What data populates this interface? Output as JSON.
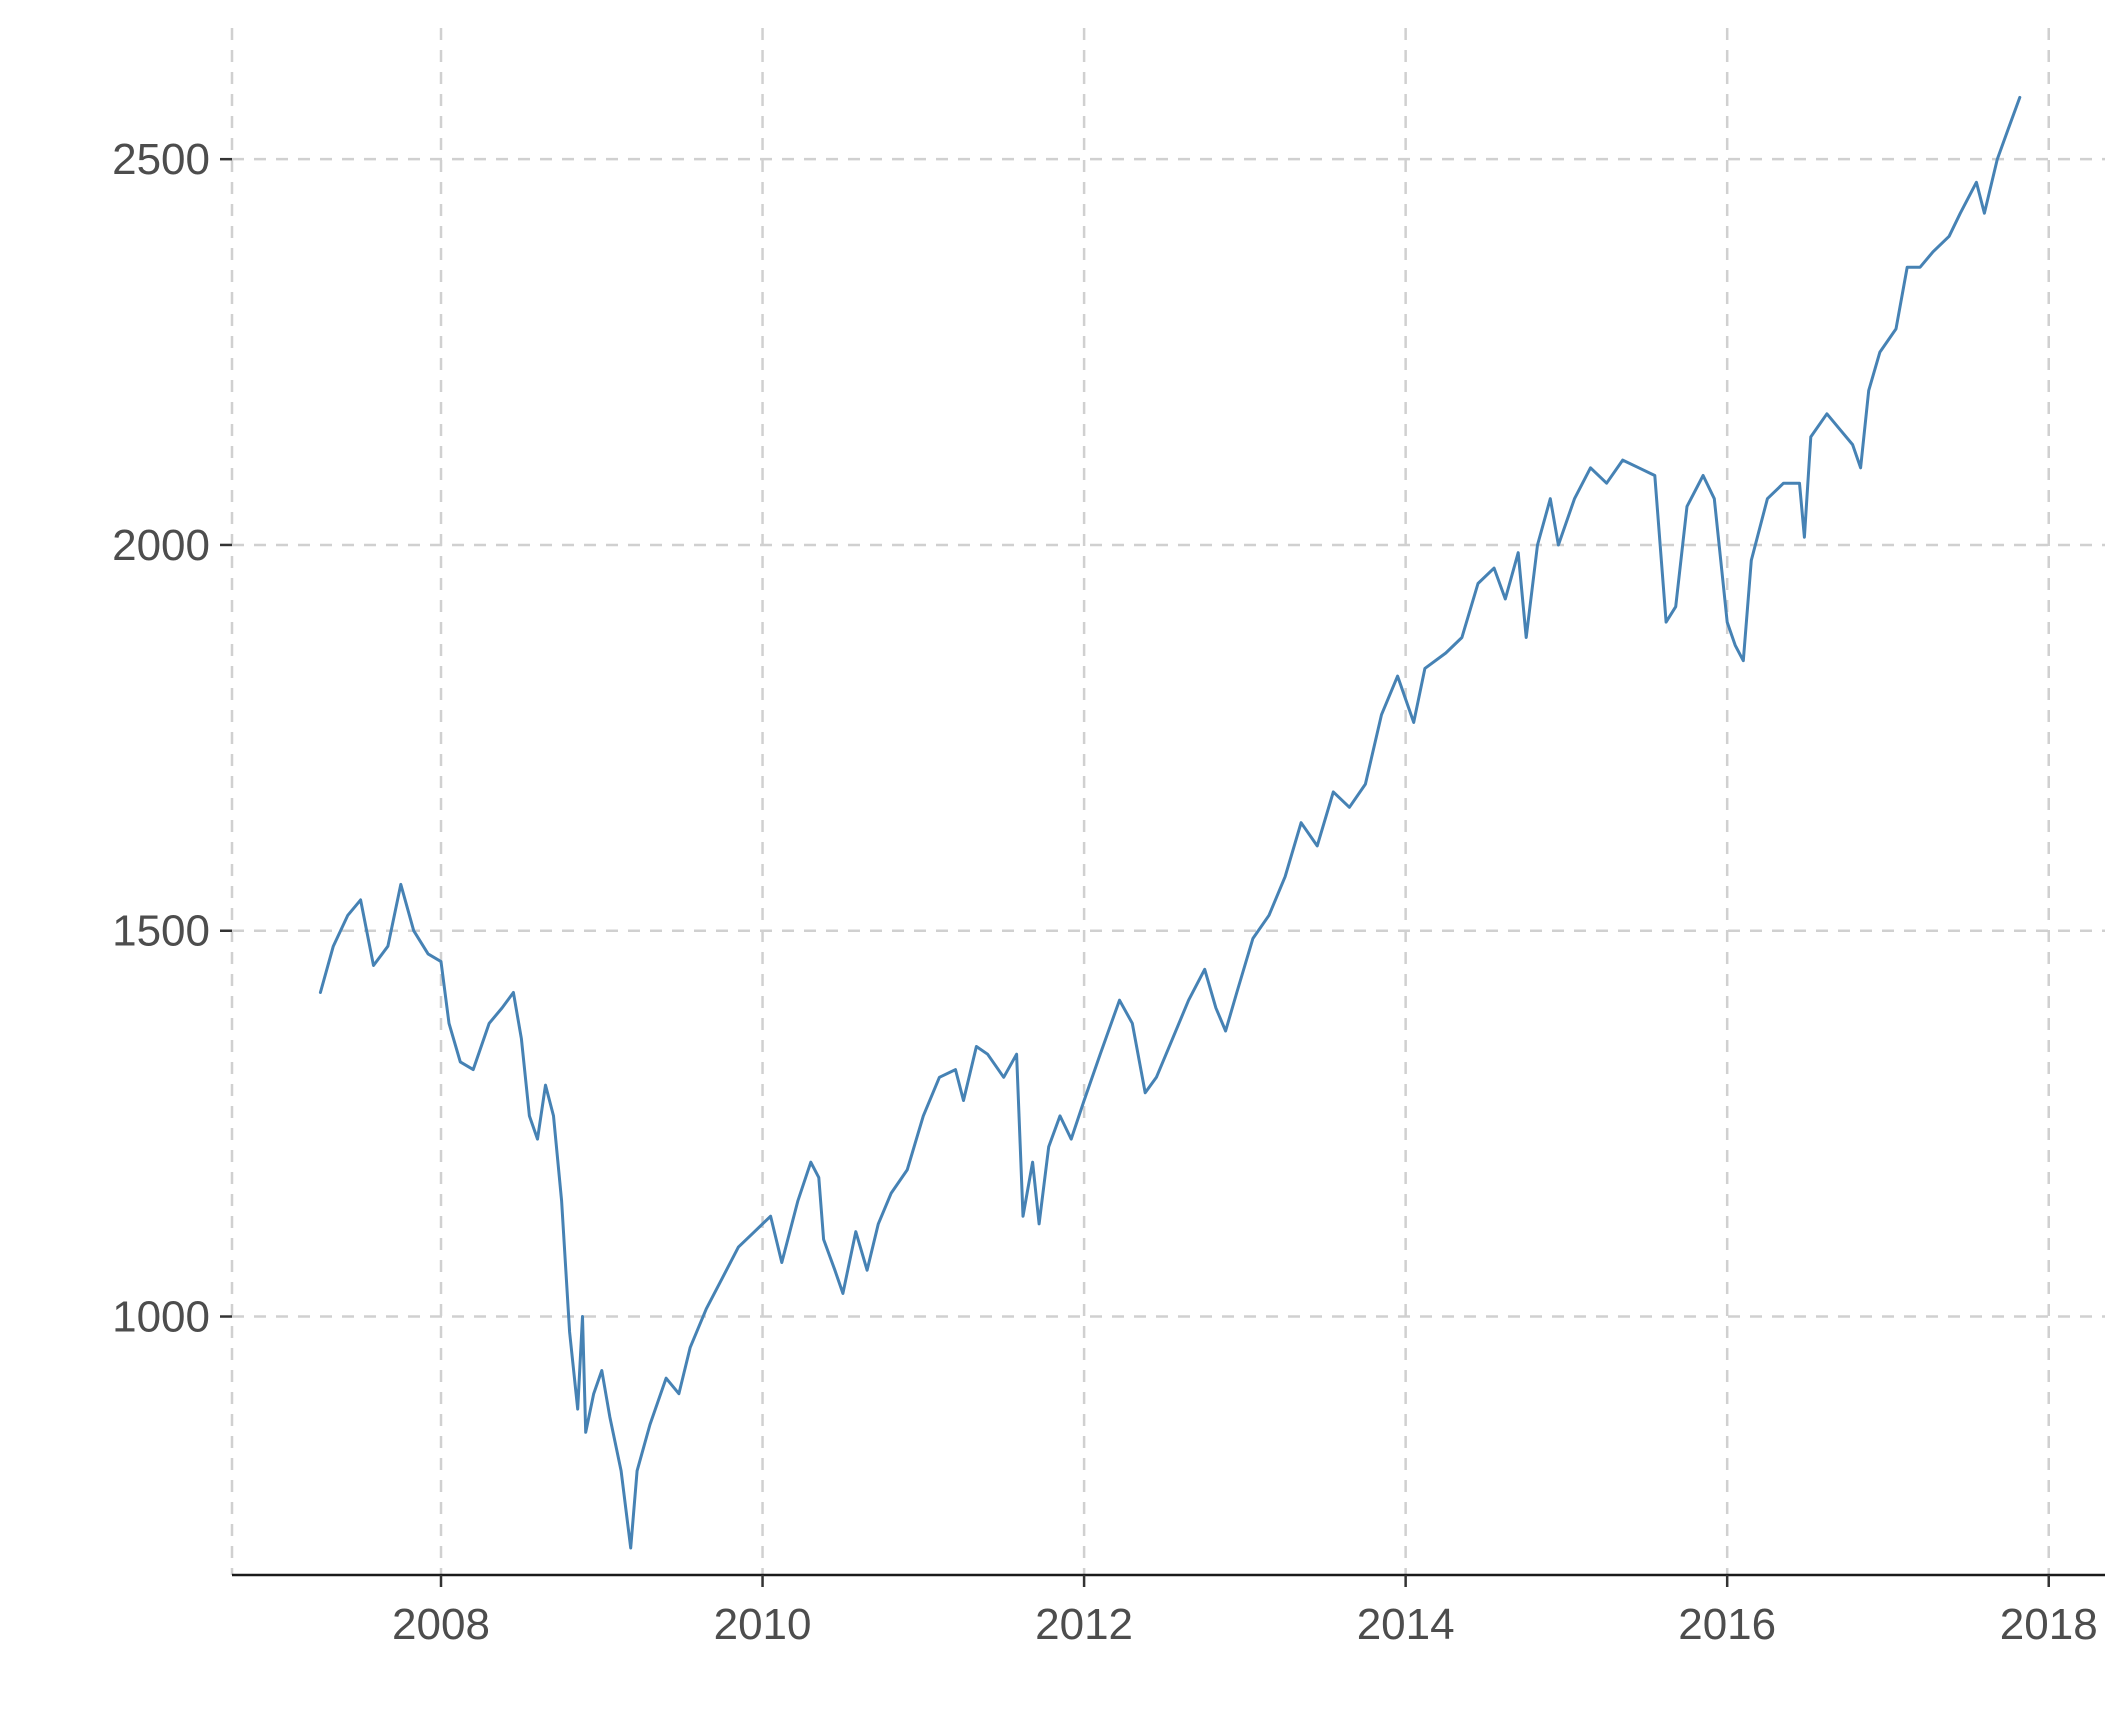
{
  "chart_data": {
    "type": "line",
    "title": "",
    "xlabel": "",
    "ylabel": "",
    "xlim": [
      2006.7,
      2018.35
    ],
    "ylim": [
      665,
      2670
    ],
    "x_ticks": [
      2008,
      2010,
      2012,
      2014,
      2016,
      2018
    ],
    "y_ticks": [
      1000,
      1500,
      2000,
      2500
    ],
    "x_tick_labels": [
      "2008",
      "2010",
      "2012",
      "2014",
      "2016",
      "2018"
    ],
    "y_tick_labels": [
      "1000",
      "1500",
      "2000",
      "2500"
    ],
    "grid": true,
    "legend": "none",
    "colors": {
      "line": "#4682b4",
      "grid": "#d0d0d0",
      "axis": "#1a1a1a",
      "text": "#4d4d4d"
    },
    "series": [
      {
        "values": [
          [
            2007.25,
            1420
          ],
          [
            2007.33,
            1480
          ],
          [
            2007.42,
            1520
          ],
          [
            2007.5,
            1540
          ],
          [
            2007.58,
            1455
          ],
          [
            2007.67,
            1480
          ],
          [
            2007.75,
            1560
          ],
          [
            2007.83,
            1500
          ],
          [
            2007.92,
            1470
          ],
          [
            2008.0,
            1460
          ],
          [
            2008.05,
            1380
          ],
          [
            2008.12,
            1330
          ],
          [
            2008.2,
            1320
          ],
          [
            2008.3,
            1380
          ],
          [
            2008.38,
            1400
          ],
          [
            2008.45,
            1420
          ],
          [
            2008.5,
            1360
          ],
          [
            2008.55,
            1260
          ],
          [
            2008.6,
            1230
          ],
          [
            2008.65,
            1300
          ],
          [
            2008.7,
            1260
          ],
          [
            2008.75,
            1150
          ],
          [
            2008.8,
            980
          ],
          [
            2008.85,
            880
          ],
          [
            2008.88,
            1000
          ],
          [
            2008.9,
            850
          ],
          [
            2008.95,
            900
          ],
          [
            2009.0,
            930
          ],
          [
            2009.05,
            870
          ],
          [
            2009.12,
            800
          ],
          [
            2009.18,
            700
          ],
          [
            2009.22,
            800
          ],
          [
            2009.3,
            860
          ],
          [
            2009.4,
            920
          ],
          [
            2009.48,
            900
          ],
          [
            2009.55,
            960
          ],
          [
            2009.65,
            1010
          ],
          [
            2009.75,
            1050
          ],
          [
            2009.85,
            1090
          ],
          [
            2009.95,
            1110
          ],
          [
            2010.05,
            1130
          ],
          [
            2010.12,
            1070
          ],
          [
            2010.22,
            1150
          ],
          [
            2010.3,
            1200
          ],
          [
            2010.35,
            1180
          ],
          [
            2010.38,
            1100
          ],
          [
            2010.45,
            1060
          ],
          [
            2010.5,
            1030
          ],
          [
            2010.58,
            1110
          ],
          [
            2010.65,
            1060
          ],
          [
            2010.72,
            1120
          ],
          [
            2010.8,
            1160
          ],
          [
            2010.9,
            1190
          ],
          [
            2011.0,
            1260
          ],
          [
            2011.1,
            1310
          ],
          [
            2011.2,
            1320
          ],
          [
            2011.25,
            1280
          ],
          [
            2011.33,
            1350
          ],
          [
            2011.4,
            1340
          ],
          [
            2011.5,
            1310
          ],
          [
            2011.58,
            1340
          ],
          [
            2011.62,
            1130
          ],
          [
            2011.68,
            1200
          ],
          [
            2011.72,
            1120
          ],
          [
            2011.78,
            1220
          ],
          [
            2011.85,
            1260
          ],
          [
            2011.92,
            1230
          ],
          [
            2012.0,
            1280
          ],
          [
            2012.1,
            1340
          ],
          [
            2012.22,
            1410
          ],
          [
            2012.3,
            1380
          ],
          [
            2012.38,
            1290
          ],
          [
            2012.45,
            1310
          ],
          [
            2012.55,
            1360
          ],
          [
            2012.65,
            1410
          ],
          [
            2012.75,
            1450
          ],
          [
            2012.82,
            1400
          ],
          [
            2012.88,
            1370
          ],
          [
            2012.95,
            1420
          ],
          [
            2013.05,
            1490
          ],
          [
            2013.15,
            1520
          ],
          [
            2013.25,
            1570
          ],
          [
            2013.35,
            1640
          ],
          [
            2013.45,
            1610
          ],
          [
            2013.55,
            1680
          ],
          [
            2013.65,
            1660
          ],
          [
            2013.75,
            1690
          ],
          [
            2013.85,
            1780
          ],
          [
            2013.95,
            1830
          ],
          [
            2014.05,
            1770
          ],
          [
            2014.12,
            1840
          ],
          [
            2014.25,
            1860
          ],
          [
            2014.35,
            1880
          ],
          [
            2014.45,
            1950
          ],
          [
            2014.55,
            1970
          ],
          [
            2014.62,
            1930
          ],
          [
            2014.7,
            1990
          ],
          [
            2014.75,
            1880
          ],
          [
            2014.82,
            2000
          ],
          [
            2014.9,
            2060
          ],
          [
            2014.95,
            2000
          ],
          [
            2015.05,
            2060
          ],
          [
            2015.15,
            2100
          ],
          [
            2015.25,
            2080
          ],
          [
            2015.35,
            2110
          ],
          [
            2015.45,
            2100
          ],
          [
            2015.55,
            2090
          ],
          [
            2015.62,
            1900
          ],
          [
            2015.68,
            1920
          ],
          [
            2015.75,
            2050
          ],
          [
            2015.85,
            2090
          ],
          [
            2015.92,
            2060
          ],
          [
            2016.0,
            1900
          ],
          [
            2016.05,
            1870
          ],
          [
            2016.1,
            1850
          ],
          [
            2016.15,
            1980
          ],
          [
            2016.25,
            2060
          ],
          [
            2016.35,
            2080
          ],
          [
            2016.45,
            2080
          ],
          [
            2016.48,
            2010
          ],
          [
            2016.52,
            2140
          ],
          [
            2016.62,
            2170
          ],
          [
            2016.7,
            2150
          ],
          [
            2016.78,
            2130
          ],
          [
            2016.83,
            2100
          ],
          [
            2016.88,
            2200
          ],
          [
            2016.95,
            2250
          ],
          [
            2017.05,
            2280
          ],
          [
            2017.12,
            2360
          ],
          [
            2017.2,
            2360
          ],
          [
            2017.28,
            2380
          ],
          [
            2017.38,
            2400
          ],
          [
            2017.45,
            2430
          ],
          [
            2017.55,
            2470
          ],
          [
            2017.6,
            2430
          ],
          [
            2017.68,
            2500
          ],
          [
            2017.75,
            2540
          ],
          [
            2017.82,
            2580
          ]
        ]
      }
    ]
  }
}
